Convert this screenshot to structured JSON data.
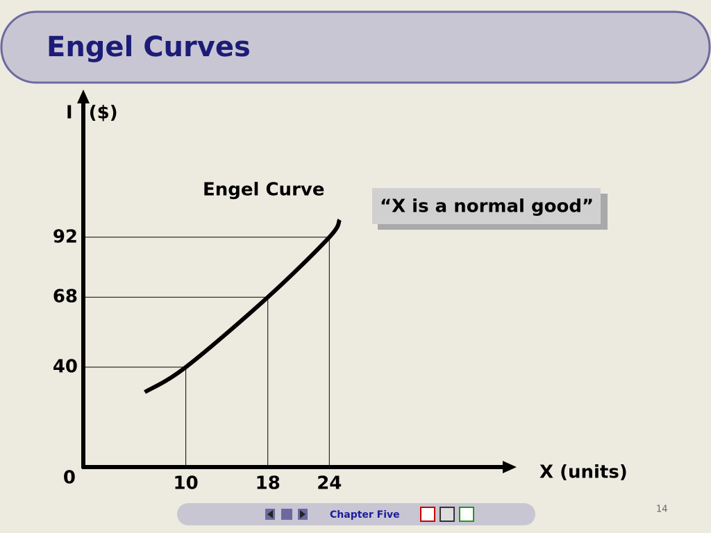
{
  "chart_data": {
    "type": "line",
    "title": "Engel Curves",
    "y_label": "I ($)",
    "x_label": "X (units)",
    "series": [
      {
        "name": "Engel Curve",
        "color": "#000000",
        "x": [
          6,
          10,
          18,
          24,
          25
        ],
        "values": [
          30,
          40,
          68,
          92,
          99
        ]
      }
    ],
    "xlim": [
      0,
      42
    ],
    "ylim": [
      0,
      150
    ],
    "xticks": [
      0,
      10,
      18,
      24
    ],
    "yticks": [
      40,
      68,
      92
    ],
    "annotation": "“X is a normal good”"
  },
  "footer": {
    "chapter": "Chapter Five",
    "page_number": "14"
  }
}
